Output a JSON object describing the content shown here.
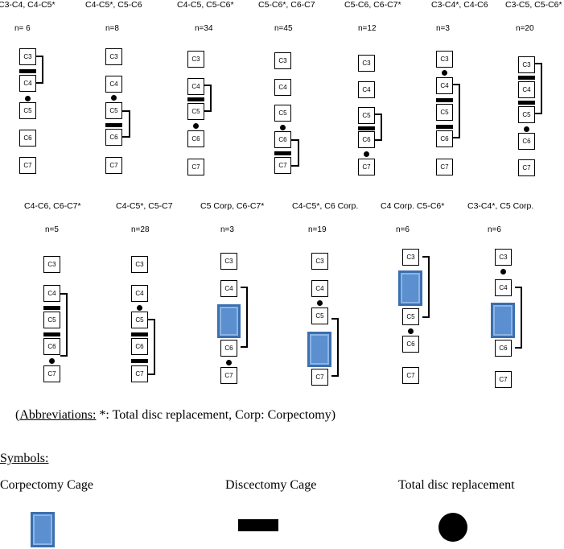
{
  "panels": [
    {
      "title": "C3-C4, C4-C5*",
      "n": "n= 6"
    },
    {
      "title": "C4-C5*, C5-C6",
      "n": "n=8"
    },
    {
      "title": "C4-C5, C5-C6*",
      "n": "n=34"
    },
    {
      "title": "C5-C6*, C6-C7",
      "n": "n=45"
    },
    {
      "title": "C5-C6, C6-C7*",
      "n": "n=12"
    },
    {
      "title": "C3-C4*, C4-C6",
      "n": "n=3"
    },
    {
      "title": "C3-C5, C5-C6*",
      "n": "n=20"
    },
    {
      "title": "C4-C6, C6-C7*",
      "n": "n=5"
    },
    {
      "title": "C4-C5*, C5-C7",
      "n": "n=28"
    },
    {
      "title": "C5 Corp, C6-C7*",
      "n": "n=3"
    },
    {
      "title": "C4-C5*, C6 Corp.",
      "n": "n=19"
    },
    {
      "title": "C4 Corp. C5-C6*",
      "n": "n=6"
    },
    {
      "title": "C3-C4*, C5 Corp.",
      "n": "n=6"
    }
  ],
  "vertebrae": [
    "C3",
    "C4",
    "C5",
    "C6",
    "C7"
  ],
  "abbreviations": {
    "heading": "Abbreviations:",
    "text": " *: Total disc replacement, Corp: Corpectomy)",
    "open": "("
  },
  "symbols": {
    "title": "Symbols:",
    "corpectomy_cage": "Corpectomy Cage",
    "discectomy_cage": "Discectomy Cage",
    "total_disc_replacement": "Total disc replacement"
  },
  "colors": {
    "cage_fill": "#5b8fd0",
    "cage_border": "#3a6fb0"
  }
}
